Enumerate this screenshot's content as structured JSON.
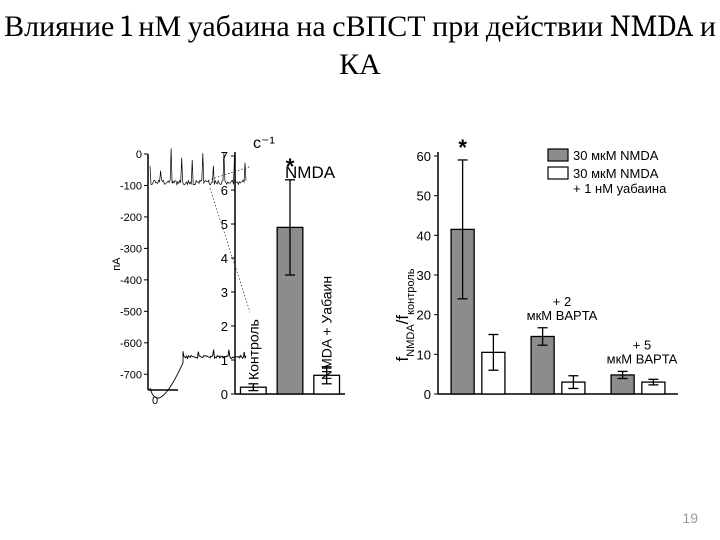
{
  "title": "Влияние 1 нМ уабаина на сВПСТ при действии NMDA и КА",
  "page_number": "19",
  "colors": {
    "bg": "#ffffff",
    "axis": "#000000",
    "bar_fill_gray": "#8c8c8c",
    "bar_fill_white": "#ffffff",
    "bar_stroke": "#000000",
    "trace": "#000000",
    "text": "#000000"
  },
  "panelA": {
    "ylabel": "пА",
    "ylabel_fontsize": 11,
    "ylim": [
      -750,
      0
    ],
    "yticks": [
      0,
      -100,
      -200,
      -300,
      -400,
      -500,
      -600,
      -700
    ],
    "trace1_baseline": -90,
    "trace2_baseline": -645,
    "tick_fontsize": 11
  },
  "panelB": {
    "heading": "с⁻¹",
    "nmda_label": "NMDA",
    "ylim": [
      0,
      7
    ],
    "yticks": [
      0,
      1,
      2,
      3,
      4,
      5,
      6,
      7
    ],
    "bars": [
      {
        "label": "Контроль",
        "value": 0.2,
        "err": 0.1,
        "fill": "#ffffff",
        "rot": true
      },
      {
        "label": "",
        "value": 4.9,
        "err": 1.4,
        "fill": "#8c8c8c",
        "star": true
      },
      {
        "label": "NMDA + Уабаин",
        "value": 0.55,
        "err": 0.25,
        "fill": "#ffffff",
        "rot": true
      }
    ],
    "bar_width": 0.7,
    "tick_fontsize": 13,
    "star": "*"
  },
  "panelC": {
    "ylabel_html": "f_NMDA / f_контроль",
    "ylim": [
      0,
      60
    ],
    "yticks": [
      0,
      10,
      20,
      30,
      40,
      50,
      60
    ],
    "legend": [
      {
        "label": "30 мкМ NMDA",
        "fill": "#8c8c8c"
      },
      {
        "label": "30 мкМ NMDA + 1 нМ уабаина",
        "fill": "#ffffff"
      }
    ],
    "groups": [
      {
        "label": "",
        "bars": [
          {
            "v": 41.5,
            "err": 17.5,
            "fill": "#8c8c8c",
            "star": true
          },
          {
            "v": 10.5,
            "err": 4.5,
            "fill": "#ffffff"
          }
        ]
      },
      {
        "label": "+ 2 мкМ BAPTA",
        "bars": [
          {
            "v": 14.5,
            "err": 2.2,
            "fill": "#8c8c8c"
          },
          {
            "v": 3.0,
            "err": 1.6,
            "fill": "#ffffff"
          }
        ]
      },
      {
        "label": "+ 5 мкМ BAPTA",
        "bars": [
          {
            "v": 4.8,
            "err": 0.9,
            "fill": "#8c8c8c"
          },
          {
            "v": 3.0,
            "err": 0.7,
            "fill": "#ffffff"
          }
        ]
      }
    ],
    "bar_width": 0.75,
    "tick_fontsize": 13,
    "star": "*"
  }
}
